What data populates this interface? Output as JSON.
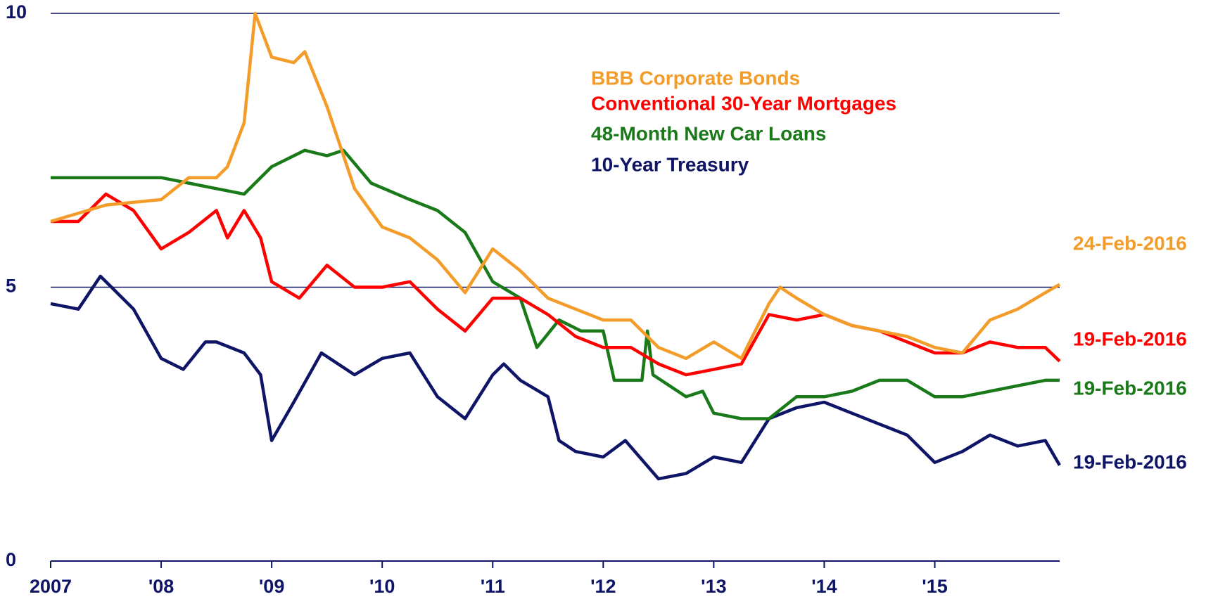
{
  "chart_data": {
    "type": "line",
    "xlim": [
      2007,
      2016.13
    ],
    "xticks": [
      {
        "value": 2007,
        "label": "2007"
      },
      {
        "value": 2008,
        "label": "'08"
      },
      {
        "value": 2009,
        "label": "'09"
      },
      {
        "value": 2010,
        "label": "'10"
      },
      {
        "value": 2011,
        "label": "'11"
      },
      {
        "value": 2012,
        "label": "'12"
      },
      {
        "value": 2013,
        "label": "'13"
      },
      {
        "value": 2014,
        "label": "'14"
      },
      {
        "value": 2015,
        "label": "'15"
      }
    ],
    "ylim": [
      0,
      10
    ],
    "yticks": [
      0,
      5,
      10
    ],
    "grid": true,
    "series": [
      {
        "name": "BBB Corporate Bonds",
        "color": "#f39c2a",
        "end_label": "24-Feb-2016",
        "x": [
          2007,
          2007.5,
          2008,
          2008.25,
          2008.5,
          2008.6,
          2008.75,
          2008.85,
          2009,
          2009.2,
          2009.3,
          2009.5,
          2009.75,
          2010,
          2010.25,
          2010.5,
          2010.75,
          2011,
          2011.25,
          2011.5,
          2011.75,
          2012,
          2012.25,
          2012.5,
          2012.75,
          2013,
          2013.25,
          2013.5,
          2013.6,
          2013.75,
          2014,
          2014.25,
          2014.5,
          2014.75,
          2015,
          2015.25,
          2015.5,
          2015.75,
          2016,
          2016.13
        ],
        "values": [
          6.2,
          6.5,
          6.6,
          7.0,
          7.0,
          7.2,
          8.0,
          10.0,
          9.2,
          9.1,
          9.3,
          8.3,
          6.8,
          6.1,
          5.9,
          5.5,
          4.9,
          5.7,
          5.3,
          4.8,
          4.6,
          4.4,
          4.4,
          3.9,
          3.7,
          4.0,
          3.7,
          4.7,
          5.0,
          4.8,
          4.5,
          4.3,
          4.2,
          4.1,
          3.9,
          3.8,
          4.4,
          4.6,
          4.9,
          5.05
        ]
      },
      {
        "name": "Conventional 30-Year Mortgages",
        "color": "#ff0000",
        "end_label": "19-Feb-2016",
        "x": [
          2007,
          2007.25,
          2007.5,
          2007.75,
          2008,
          2008.25,
          2008.5,
          2008.6,
          2008.75,
          2008.9,
          2009,
          2009.25,
          2009.5,
          2009.75,
          2010,
          2010.25,
          2010.5,
          2010.75,
          2011,
          2011.25,
          2011.5,
          2011.75,
          2012,
          2012.25,
          2012.5,
          2012.75,
          2013,
          2013.25,
          2013.5,
          2013.75,
          2014,
          2014.25,
          2014.5,
          2014.75,
          2015,
          2015.25,
          2015.5,
          2015.75,
          2016,
          2016.13
        ],
        "values": [
          6.2,
          6.2,
          6.7,
          6.4,
          5.7,
          6.0,
          6.4,
          5.9,
          6.4,
          5.9,
          5.1,
          4.8,
          5.4,
          5.0,
          5.0,
          5.1,
          4.6,
          4.2,
          4.8,
          4.8,
          4.5,
          4.1,
          3.9,
          3.9,
          3.6,
          3.4,
          3.5,
          3.6,
          4.5,
          4.4,
          4.5,
          4.3,
          4.2,
          4.0,
          3.8,
          3.8,
          4.0,
          3.9,
          3.9,
          3.65
        ]
      },
      {
        "name": "48-Month New Car Loans",
        "color": "#1a7a1a",
        "end_label": "19-Feb-2016",
        "x": [
          2007,
          2007.5,
          2008,
          2008.25,
          2008.5,
          2008.75,
          2009,
          2009.3,
          2009.5,
          2009.65,
          2009.9,
          2010.25,
          2010.5,
          2010.75,
          2011,
          2011.25,
          2011.4,
          2011.6,
          2011.8,
          2012,
          2012.1,
          2012.35,
          2012.4,
          2012.45,
          2012.75,
          2012.9,
          2013,
          2013.25,
          2013.5,
          2013.75,
          2014,
          2014.25,
          2014.5,
          2014.75,
          2015,
          2015.25,
          2015.5,
          2015.75,
          2016,
          2016.13
        ],
        "values": [
          7.0,
          7.0,
          7.0,
          6.9,
          6.8,
          6.7,
          7.2,
          7.5,
          7.4,
          7.5,
          6.9,
          6.6,
          6.4,
          6.0,
          5.1,
          4.8,
          3.9,
          4.4,
          4.2,
          4.2,
          3.3,
          3.3,
          4.2,
          3.4,
          3.0,
          3.1,
          2.7,
          2.6,
          2.6,
          3.0,
          3.0,
          3.1,
          3.3,
          3.3,
          3.0,
          3.0,
          3.1,
          3.2,
          3.3,
          3.3
        ]
      },
      {
        "name": "10-Year Treasury",
        "color": "#0f1566",
        "end_label": "19-Feb-2016",
        "x": [
          2007,
          2007.25,
          2007.45,
          2007.75,
          2008,
          2008.2,
          2008.4,
          2008.5,
          2008.75,
          2008.9,
          2009,
          2009.2,
          2009.45,
          2009.75,
          2010,
          2010.25,
          2010.5,
          2010.75,
          2011,
          2011.1,
          2011.25,
          2011.5,
          2011.6,
          2011.75,
          2012,
          2012.2,
          2012.5,
          2012.75,
          2013,
          2013.25,
          2013.5,
          2013.75,
          2014,
          2014.25,
          2014.5,
          2014.75,
          2015,
          2015.25,
          2015.5,
          2015.75,
          2016,
          2016.13
        ],
        "values": [
          4.7,
          4.6,
          5.2,
          4.6,
          3.7,
          3.5,
          4.0,
          4.0,
          3.8,
          3.4,
          2.2,
          2.9,
          3.8,
          3.4,
          3.7,
          3.8,
          3.0,
          2.6,
          3.4,
          3.6,
          3.3,
          3.0,
          2.2,
          2.0,
          1.9,
          2.2,
          1.5,
          1.6,
          1.9,
          1.8,
          2.6,
          2.8,
          2.9,
          2.7,
          2.5,
          2.3,
          1.8,
          2.0,
          2.3,
          2.1,
          2.2,
          1.75
        ]
      }
    ]
  }
}
